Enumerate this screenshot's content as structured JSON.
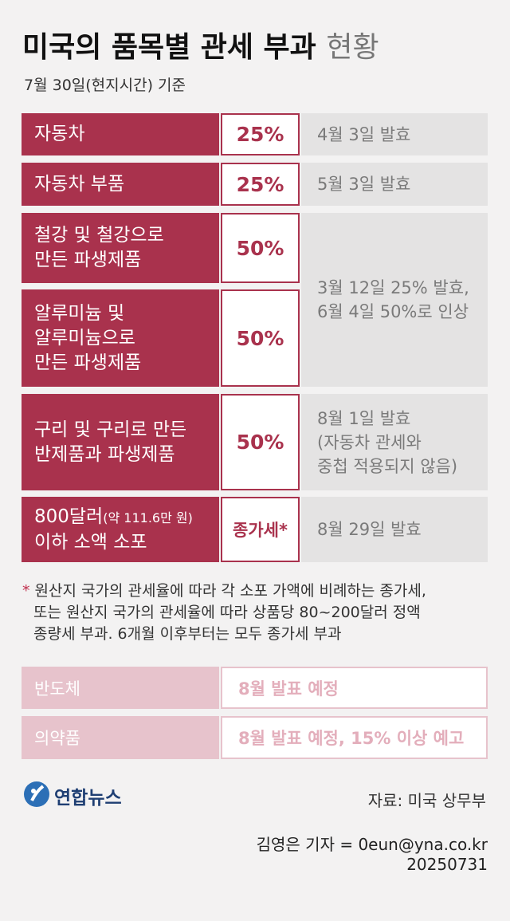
{
  "header": {
    "title": "미국의 품목별 관세 부과",
    "title_suffix": "현황",
    "subtitle": "7월 30일(현지시간) 기준"
  },
  "table": {
    "rows": [
      {
        "item": [
          "자동차"
        ],
        "rate": "25%",
        "note": [
          "4월 3일 발효"
        ]
      },
      {
        "item": [
          "자동차 부품"
        ],
        "rate": "25%",
        "note": [
          "5월 3일 발효"
        ]
      },
      {
        "item": [
          "철강 및 철강으로",
          "만든 파생제품"
        ],
        "rate": "50%",
        "note": [
          "3월 12일 25% 발효,",
          "6월 4일 50%로 인상"
        ]
      },
      {
        "item": [
          "알루미늄 및",
          "알루미늄으로",
          "만든 파생제품"
        ],
        "rate": "50%"
      },
      {
        "item": [
          "구리 및 구리로 만든",
          "반제품과 파생제품"
        ],
        "rate": "50%",
        "note": [
          "8월 1일 발효",
          "(자동차 관세와",
          "중첩 적용되지 않음)"
        ]
      },
      {
        "item": [
          "800달러",
          "이하 소액 소포"
        ],
        "item_detail": "(약 111.6만 원)",
        "rate": "종가세*",
        "note": [
          "8월 29일 발효"
        ]
      }
    ]
  },
  "footnote": {
    "marker": "*",
    "lines": [
      "원산지 국가의 관세율에 따라 각 소포 가액에 비례하는 종가세,",
      "또는 원산지 국가의 관세율에 따라 상품당 80~200달러 정액",
      "종량세 부과. 6개월 이후부터는 모두 종가세 부과"
    ]
  },
  "pending": [
    {
      "item": "반도체",
      "status": "8월 발표 예정"
    },
    {
      "item": "의약품",
      "status": "8월 발표 예정, 15% 이상 예고"
    }
  ],
  "footer": {
    "logo": "연합뉴스",
    "source": "자료: 미국 상무부",
    "credit": "김영은 기자 = 0eun@yna.co.kr",
    "date": "20250731"
  }
}
